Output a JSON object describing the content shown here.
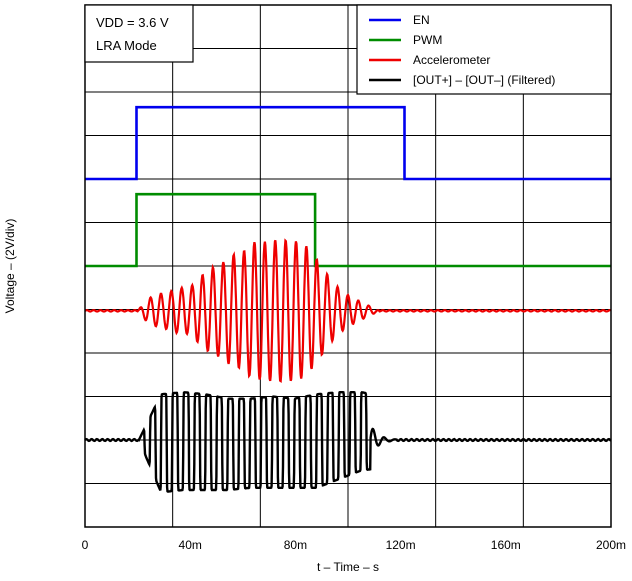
{
  "chart_data": {
    "type": "line",
    "title": "",
    "xlabel": "t – Time – s",
    "ylabel": "Voltage – (2V/div)",
    "xlim": [
      0,
      0.2
    ],
    "ylim": [
      0,
      12
    ],
    "x_ticks": [
      0,
      0.04,
      0.08,
      0.12,
      0.16,
      0.2
    ],
    "x_tick_labels": [
      "0",
      "40m",
      "80m",
      "120m",
      "160m",
      "200m"
    ],
    "grid": true,
    "grid_divisions_x": 6,
    "grid_divisions_y": 12,
    "conditions": [
      "VDD = 3.6 V",
      "LRA Mode"
    ],
    "legend_position": "top-right",
    "series": [
      {
        "name": "EN",
        "color": "#0000ee",
        "x": [
          0,
          0.0196,
          0.0196,
          0.1215,
          0.1215,
          0.2
        ],
        "y": [
          8.0,
          8.0,
          9.65,
          9.65,
          8.0,
          8.0
        ]
      },
      {
        "name": "PWM",
        "color": "#008c00",
        "x": [
          0,
          0.0196,
          0.0196,
          0.0875,
          0.0875,
          0.2
        ],
        "y": [
          6.0,
          6.0,
          7.65,
          7.65,
          6.0,
          6.0
        ]
      },
      {
        "name": "Accelerometer",
        "color": "#ee0000",
        "baseline": 4.97,
        "x": [
          0,
          0.02,
          0.0239,
          0.0279,
          0.0318,
          0.0358,
          0.0398,
          0.0438,
          0.0478,
          0.0518,
          0.0557,
          0.0597,
          0.0637,
          0.0676,
          0.0716,
          0.0756,
          0.0796,
          0.0836,
          0.0876,
          0.0916,
          0.0955,
          0.0995,
          0.1035,
          0.1075,
          0.112,
          0.2
        ],
        "y": [
          4.97,
          4.97,
          5.25,
          5.35,
          5.4,
          5.5,
          5.5,
          5.75,
          5.95,
          6.05,
          6.25,
          6.3,
          6.55,
          6.55,
          6.6,
          6.6,
          6.58,
          6.5,
          6.2,
          5.85,
          5.55,
          5.35,
          5.22,
          5.1,
          4.97,
          4.97
        ]
      },
      {
        "name": "[OUT+] – [OUT–] (Filtered)",
        "color": "#000000",
        "baseline": 2.0,
        "x": [
          0,
          0.0205,
          0.0289,
          0.0374,
          0.0458,
          0.0543,
          0.0627,
          0.0712,
          0.0796,
          0.0881,
          0.0965,
          0.105,
          0.2
        ],
        "y": [
          2.0,
          2.0,
          3.05,
          3.1,
          3.05,
          2.95,
          2.95,
          3.0,
          2.95,
          3.05,
          3.1,
          3.1,
          2.0
        ],
        "trough": [
          2.0,
          2.0,
          0.8,
          0.85,
          0.85,
          0.85,
          0.9,
          0.9,
          0.9,
          0.9,
          1.1,
          1.3,
          2.0
        ]
      }
    ]
  }
}
